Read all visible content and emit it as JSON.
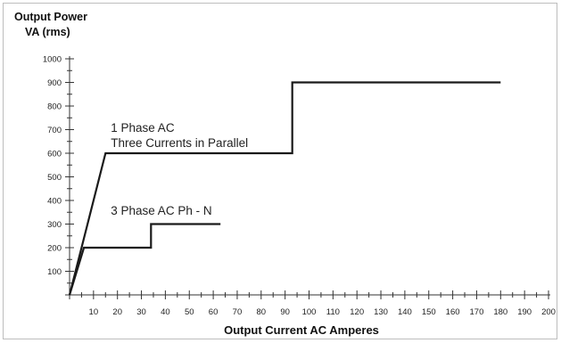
{
  "chart_data": {
    "type": "line",
    "title": [
      "Output Power",
      "VA (rms)"
    ],
    "xlabel": "Output Current AC Amperes",
    "ylabel": "",
    "xlim": [
      0,
      200
    ],
    "ylim": [
      0,
      1000
    ],
    "x_ticks": [
      10,
      20,
      30,
      40,
      50,
      60,
      70,
      80,
      90,
      100,
      110,
      120,
      130,
      140,
      150,
      160,
      170,
      180,
      190,
      200
    ],
    "y_ticks": [
      100,
      200,
      300,
      400,
      500,
      600,
      700,
      800,
      900,
      1000
    ],
    "grid": false,
    "legend": "none",
    "series": [
      {
        "points": [
          [
            0,
            0
          ],
          [
            15,
            600
          ],
          [
            93,
            600
          ],
          [
            93,
            900
          ],
          [
            180,
            900
          ]
        ],
        "color": "#1a1a1a"
      },
      {
        "points": [
          [
            0,
            0
          ],
          [
            6,
            200
          ],
          [
            34,
            200
          ],
          [
            34,
            300
          ],
          [
            63,
            300
          ]
        ],
        "color": "#1a1a1a"
      }
    ],
    "annotations": [
      {
        "lines": [
          "1 Phase AC",
          "Three Currents in Parallel"
        ],
        "x": 15,
        "y": 690
      },
      {
        "lines": [
          "3 Phase AC Ph - N"
        ],
        "x": 15,
        "y": 340
      }
    ]
  }
}
